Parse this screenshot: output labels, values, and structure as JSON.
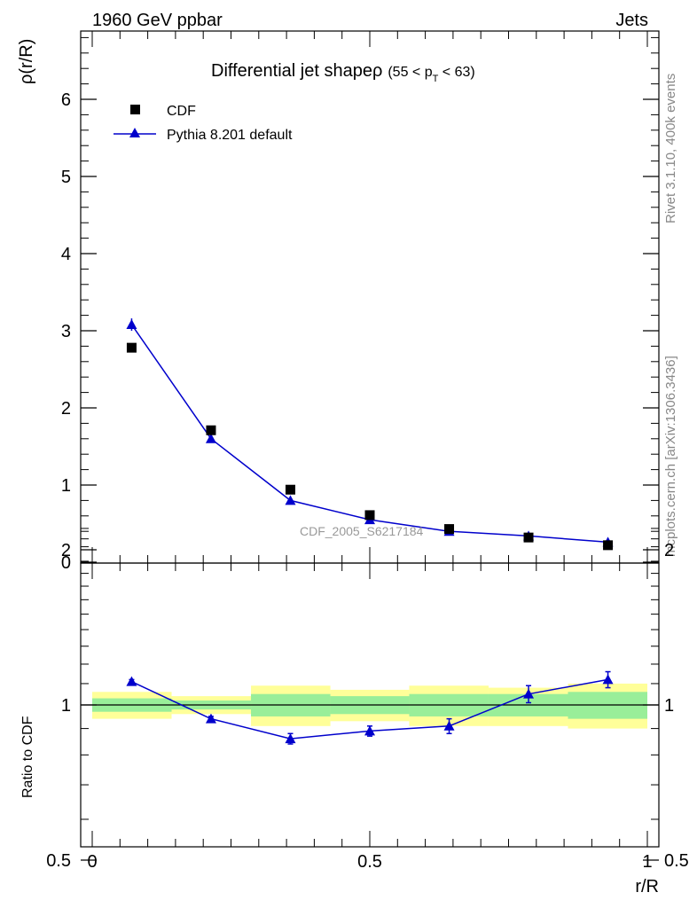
{
  "header": {
    "left": "1960 GeV ppbar",
    "right": "Jets"
  },
  "side_labels": {
    "top": "Rivet 3.1.10,  400k events",
    "bottom": "mcplots.cern.ch [arXiv:1306.3436]"
  },
  "chart_data": [
    {
      "type": "scatter",
      "title": "Differential jet shapeρ",
      "subtitle_parts": [
        "(55 < p",
        "T",
        " < 63)"
      ],
      "ylabel": "ρ(r/R)",
      "xlabel": "",
      "xlim": [
        0,
        1
      ],
      "ylim": [
        0,
        6.9
      ],
      "y_ticks": [
        "0",
        "1",
        "2",
        "3",
        "4",
        "5",
        "6"
      ],
      "watermark": "CDF_2005_S6217184",
      "legend_position": "top-left",
      "x": [
        0.071,
        0.214,
        0.357,
        0.5,
        0.643,
        0.786,
        0.929
      ],
      "series": [
        {
          "name": "CDF",
          "marker": "square",
          "color": "#000000",
          "values": [
            2.78,
            1.71,
            0.94,
            0.61,
            0.43,
            0.32,
            0.22
          ]
        },
        {
          "name": "Pythia 8.201 default",
          "marker": "triangle",
          "color": "#0000cc",
          "values": [
            3.08,
            1.6,
            0.8,
            0.55,
            0.4,
            0.34,
            0.26
          ],
          "errors": [
            0.08,
            0.03,
            0.02,
            0.01,
            0.01,
            0.01,
            0.01
          ]
        }
      ]
    },
    {
      "type": "scatter",
      "ylabel": "Ratio to CDF",
      "xlabel": "r/R",
      "xlim": [
        0,
        1
      ],
      "ylim": [
        0.34,
        2.35
      ],
      "x_ticks": [
        "0",
        "0.5",
        "1"
      ],
      "y_ticks": [
        "0.5",
        "1",
        "2"
      ],
      "x": [
        0.071,
        0.214,
        0.357,
        0.5,
        0.643,
        0.786,
        0.929
      ],
      "bin_edges": [
        0,
        0.143,
        0.286,
        0.429,
        0.571,
        0.714,
        0.857,
        1.0
      ],
      "bands": {
        "yellow": {
          "color": "#ffff99",
          "lo": [
            0.94,
            0.96,
            0.91,
            0.93,
            0.91,
            0.91,
            0.9
          ],
          "hi": [
            1.06,
            1.04,
            1.09,
            1.07,
            1.09,
            1.08,
            1.1
          ]
        },
        "green": {
          "color": "#99ee99",
          "lo": [
            0.97,
            0.98,
            0.95,
            0.96,
            0.95,
            0.95,
            0.94
          ],
          "hi": [
            1.03,
            1.02,
            1.05,
            1.04,
            1.05,
            1.05,
            1.06
          ]
        }
      },
      "series": [
        {
          "name": "Pythia 8.201 default",
          "marker": "triangle",
          "color": "#0000cc",
          "values": [
            1.11,
            0.94,
            0.86,
            0.89,
            0.91,
            1.05,
            1.12
          ],
          "errors": [
            0.01,
            0.01,
            0.02,
            0.02,
            0.03,
            0.04,
            0.04
          ]
        }
      ]
    }
  ]
}
